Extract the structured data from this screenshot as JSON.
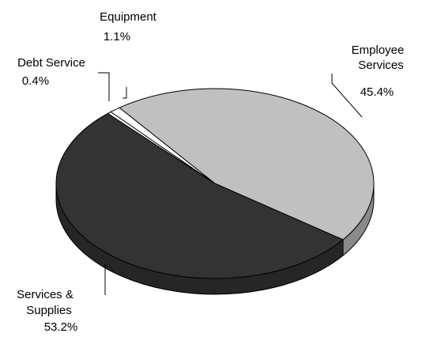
{
  "chart_data": {
    "type": "pie",
    "title": "",
    "slices": [
      {
        "label": [
          "Employee",
          "Services"
        ],
        "percent_label": "45.4%",
        "value": 45.4,
        "color": "#c0c0c0",
        "side_color": "#8a8a8a"
      },
      {
        "label": [
          "Services &",
          "Supplies"
        ],
        "percent_label": "53.2%",
        "value": 53.2,
        "color": "#333333",
        "side_color": "#262626"
      },
      {
        "label": [
          "Debt Service"
        ],
        "percent_label": "0.4%",
        "value": 0.4,
        "color": "#ffffff",
        "side_color": "#d9d9d9"
      },
      {
        "label": [
          "Equipment"
        ],
        "percent_label": "1.1%",
        "value": 1.1,
        "color": "#ffffff",
        "side_color": "#d9d9d9"
      }
    ],
    "style": "3d-pie",
    "legend": "none"
  }
}
